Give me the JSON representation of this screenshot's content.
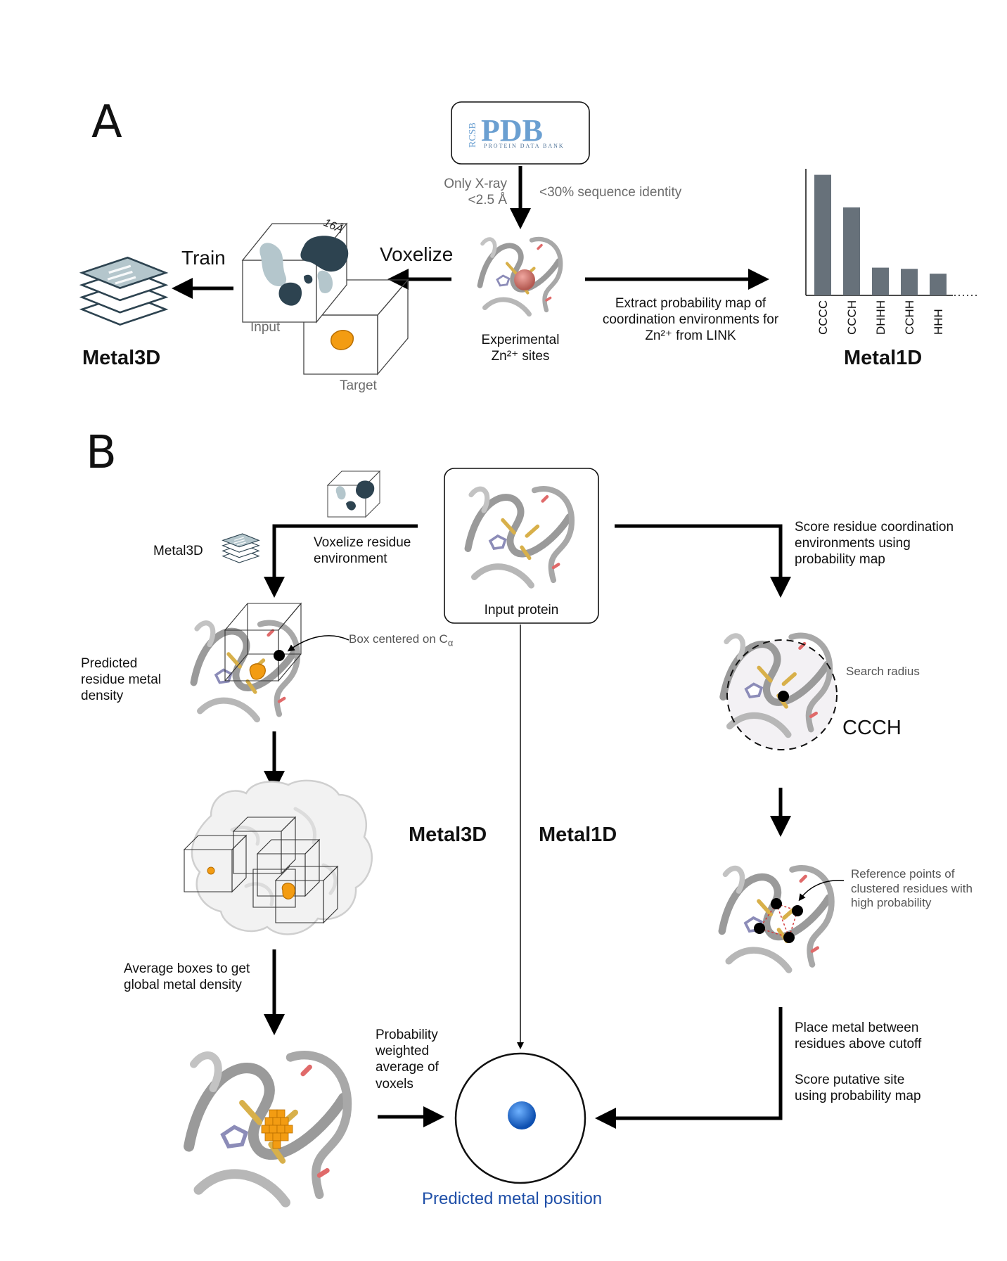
{
  "panel_a": {
    "letter": "A",
    "pdb_logo": {
      "rcsb": "RCSB",
      "pdb": "PDB",
      "subtitle": "PROTEIN DATA BANK"
    },
    "filter_left": "Only X-ray\n<2.5 Å",
    "filter_right": "<30% sequence identity",
    "train_label": "Train",
    "voxelize_label": "Voxelize",
    "box_size": "16Å",
    "input_label": "Input",
    "target_label": "Target",
    "sites_label": "Experimental\nZn²⁺ sites",
    "extract_label": "Extract probability map of\ncoordination environments for\nZn²⁺ from LINK",
    "metal3d_title": "Metal3D",
    "metal1d_title": "Metal1D"
  },
  "chart_data": {
    "type": "bar",
    "categories": [
      "CCCC",
      "CCCH",
      "DHHH",
      "CCHH",
      "HHH"
    ],
    "values": [
      1.0,
      0.73,
      0.23,
      0.22,
      0.18
    ],
    "truncated": true,
    "bar_color": "#67717a",
    "ylim": [
      0,
      1.05
    ]
  },
  "panel_b": {
    "letter": "B",
    "metal3d_small": "Metal3D",
    "voxelize_residue": "Voxelize residue\nenvironment",
    "input_protein": "Input protein",
    "score_residue": "Score residue coordination\nenvironments using\nprobability map",
    "box_centered": "Box centered on C",
    "box_centered_sub": "α",
    "predicted_density": "Predicted\nresidue metal\ndensity",
    "search_radius": "Search radius",
    "ccch": "CCCH",
    "metal3d_mid": "Metal3D",
    "metal1d_mid": "Metal1D",
    "reference_points": "Reference points of\nclustered residues with\nhigh probability",
    "average_boxes": "Average boxes to get\nglobal metal density",
    "place_metal": "Place metal between\nresidues above cutoff",
    "score_site": "Score putative site\nusing probability map",
    "prob_weighted": "Probability\nweighted\naverage of\nvoxels",
    "predicted_position": "Predicted metal position"
  },
  "colors": {
    "dark_blob": "#2d4350",
    "light_blob": "#b4c6cc",
    "orange": "#f39c12",
    "metal_blue": "#1e6fd6",
    "bar": "#67717a",
    "pdb_blue": "#6a9fd1",
    "stick_gold": "#d8b04a"
  }
}
